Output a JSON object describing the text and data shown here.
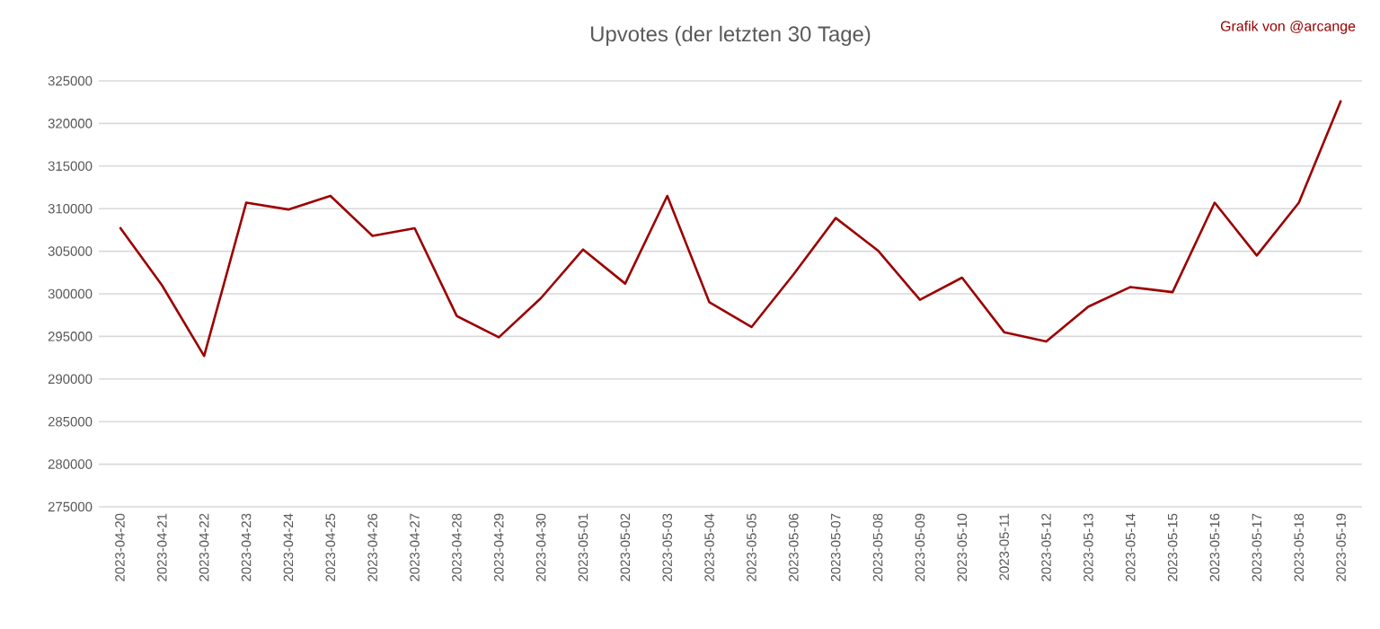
{
  "chart_data": {
    "type": "line",
    "title": "Upvotes (der letzten 30 Tage)",
    "annotations": [
      "Grafik von @arcange"
    ],
    "categories": [
      "2023-04-20",
      "2023-04-21",
      "2023-04-22",
      "2023-04-23",
      "2023-04-24",
      "2023-04-25",
      "2023-04-26",
      "2023-04-27",
      "2023-04-28",
      "2023-04-29",
      "2023-04-30",
      "2023-05-01",
      "2023-05-02",
      "2023-05-03",
      "2023-05-04",
      "2023-05-05",
      "2023-05-06",
      "2023-05-07",
      "2023-05-08",
      "2023-05-09",
      "2023-05-10",
      "2023-05-11",
      "2023-05-12",
      "2023-05-13",
      "2023-05-14",
      "2023-05-15",
      "2023-05-16",
      "2023-05-17",
      "2023-05-18",
      "2023-05-19"
    ],
    "series": [
      {
        "color": "#9b0000",
        "values": [
          307800,
          301000,
          292700,
          310700,
          309900,
          311500,
          306800,
          307700,
          297400,
          294900,
          299500,
          305200,
          301200,
          311500,
          299000,
          296100,
          302300,
          308900,
          305100,
          299300,
          301900,
          295500,
          294400,
          298500,
          300800,
          300200,
          310700,
          304500,
          310700,
          322700
        ]
      }
    ],
    "ylim": [
      275000,
      325000
    ],
    "yticks": [
      275000,
      280000,
      285000,
      290000,
      295000,
      300000,
      305000,
      310000,
      315000,
      320000,
      325000
    ],
    "grid": "y",
    "marker": "none",
    "line_style": "solid"
  }
}
